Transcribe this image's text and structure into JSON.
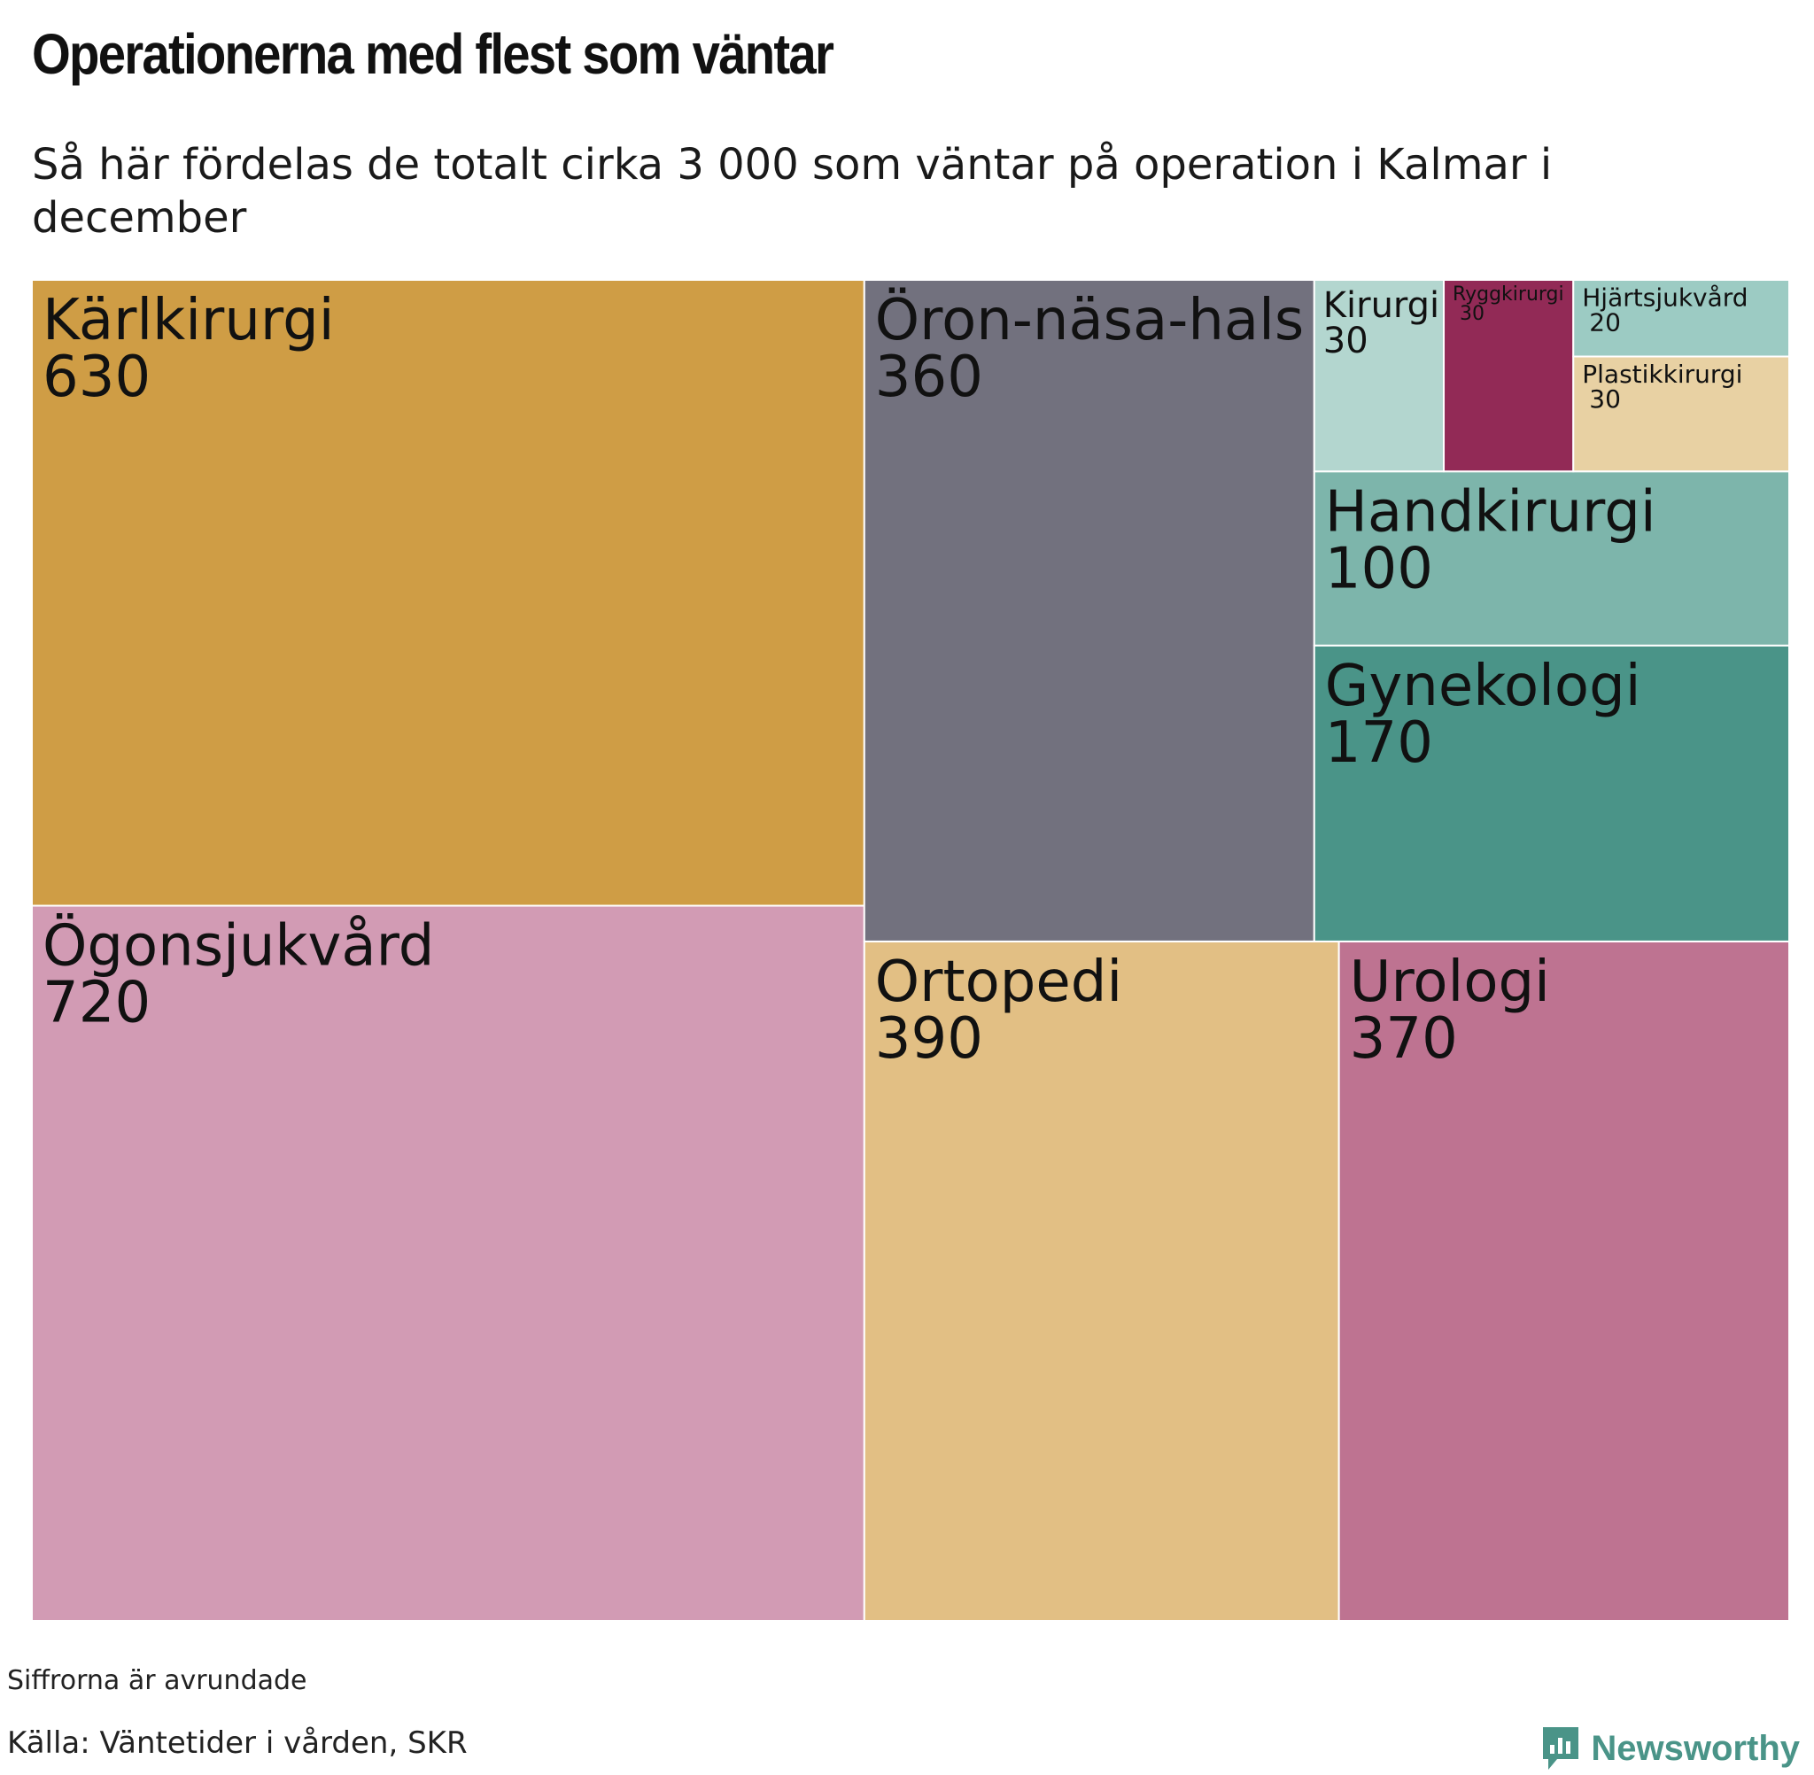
{
  "title": "Operationerna med flest som väntar",
  "subtitle": "Så här fördelas de totalt cirka 3 000 som väntar på operation i Kalmar i december",
  "note": "Siffrorna är avrundade",
  "source": "Källa: Väntetider i vården, SKR",
  "brand": {
    "name": "Newsworthy",
    "icon": "newsworthy-logo-icon",
    "color": "#4a9488"
  },
  "chart_data": {
    "type": "treemap",
    "unit": "patienter som väntar",
    "items": [
      {
        "name": "Ögonsjukvård",
        "value": 720,
        "color": "#d29bb4"
      },
      {
        "name": "Kärlkirurgi",
        "value": 630,
        "color": "#cf9d45"
      },
      {
        "name": "Ortopedi",
        "value": 390,
        "color": "#e2bf84"
      },
      {
        "name": "Urologi",
        "value": 370,
        "color": "#be7391"
      },
      {
        "name": "Öron-näsa-hals",
        "value": 360,
        "color": "#72717e"
      },
      {
        "name": "Gynekologi",
        "value": 170,
        "color": "#4a9488"
      },
      {
        "name": "Handkirurgi",
        "value": 100,
        "color": "#7db5ab"
      },
      {
        "name": "Kirurgi",
        "value": 30,
        "color": "#b3d6cf"
      },
      {
        "name": "Ryggkirurgi",
        "value": 30,
        "color": "#922a56"
      },
      {
        "name": "Plastikkirurgi",
        "value": 30,
        "color": "#e8d1a3"
      },
      {
        "name": "Hjärtsjukvård",
        "value": 20,
        "color": "#9ccbc3"
      }
    ]
  }
}
